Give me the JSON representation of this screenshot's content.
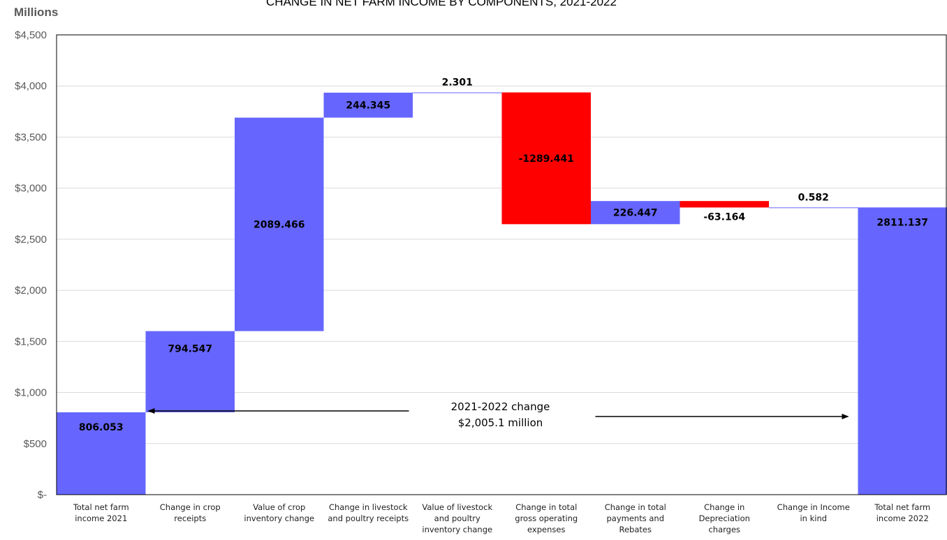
{
  "chart_data": {
    "type": "bar",
    "subtype": "waterfall",
    "title": "CHANGE IN NET FARM INCOME BY COMPONENTS, 2021-2022",
    "y_unit_label": "Millions",
    "ylim": [
      0,
      4500
    ],
    "ytick_labels": [
      "$-",
      "$500",
      "$1,000",
      "$1,500",
      "$2,000",
      "$2,500",
      "$3,000",
      "$3,500",
      "$4,000",
      "$4,500"
    ],
    "grid": true,
    "legend": "none",
    "categories": [
      [
        "Total net farm",
        "income 2021"
      ],
      [
        "Change in crop",
        "receipts"
      ],
      [
        "Value of crop",
        "inventory change"
      ],
      [
        "Change in livestock",
        "and poultry receipts"
      ],
      [
        "Value of livestock",
        "and poultry",
        "inventory change"
      ],
      [
        "Change in total",
        "gross operating",
        "expenses"
      ],
      [
        "Change in total",
        "payments and",
        "Rebates"
      ],
      [
        "Change in",
        "Depreciation",
        "charges"
      ],
      [
        "Change in Income",
        "in kind"
      ],
      [
        "Total net farm",
        "income 2022"
      ]
    ],
    "values": [
      806.053,
      794.547,
      2089.466,
      244.345,
      2.301,
      -1289.441,
      226.447,
      -63.164,
      0.582,
      2811.137
    ],
    "value_labels": [
      "806.053",
      "794.547",
      "2089.466",
      "244.345",
      "2.301",
      "-1289.441",
      "226.447",
      "-63.164",
      "0.582",
      "2811.137"
    ],
    "bar_kinds": [
      "total",
      "delta",
      "delta",
      "delta",
      "delta",
      "delta",
      "delta",
      "delta",
      "delta",
      "total"
    ],
    "colors": {
      "increase": "#6666ff",
      "decrease": "#ff0000",
      "total": "#6666ff",
      "grid": "#d9d9d9",
      "axis": "#000000"
    },
    "annotation": {
      "line1": "2021-2022 change",
      "line2": "$2,005.1 million",
      "from_category": 0,
      "to_category": 9
    }
  }
}
